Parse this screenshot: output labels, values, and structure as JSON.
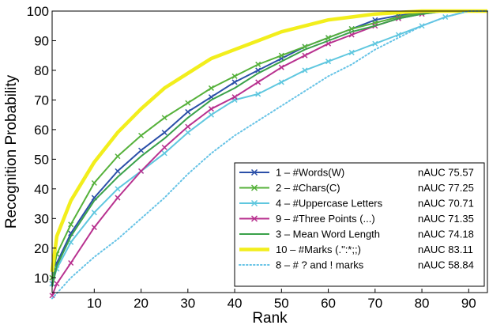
{
  "chart_data": {
    "type": "line",
    "xlabel": "Rank",
    "ylabel": "Recognition Probability",
    "xlim": [
      1,
      94
    ],
    "ylim": [
      5,
      100
    ],
    "x_ticks": [
      10,
      20,
      30,
      40,
      50,
      60,
      70,
      80,
      90
    ],
    "y_ticks": [
      10,
      20,
      30,
      40,
      50,
      60,
      70,
      80,
      90,
      100
    ],
    "grid": false,
    "legend_position": "bottom-right",
    "series": [
      {
        "name": "1 – #Words(W)",
        "nauc": "nAUC 75.57",
        "color": "#2b4fa8",
        "style": "solid",
        "marker": "x",
        "x": [
          1,
          2,
          5,
          10,
          15,
          20,
          25,
          30,
          35,
          40,
          45,
          50,
          55,
          60,
          65,
          70,
          75,
          80,
          85,
          90,
          94
        ],
        "y": [
          8,
          15,
          25,
          37,
          46,
          53,
          59,
          66,
          71,
          76,
          80,
          84,
          88,
          91,
          94,
          97,
          98.5,
          99.5,
          100,
          100,
          100
        ]
      },
      {
        "name": "2 – #Chars(C)",
        "nauc": "nAUC 77.25",
        "color": "#55b13a",
        "style": "solid",
        "marker": "x",
        "x": [
          1,
          2,
          5,
          10,
          15,
          20,
          25,
          30,
          35,
          40,
          45,
          50,
          55,
          60,
          65,
          70,
          75,
          80,
          85,
          90,
          94
        ],
        "y": [
          10,
          18,
          28,
          42,
          51,
          58,
          64,
          69,
          74,
          78,
          82,
          85,
          88,
          91,
          94,
          96,
          98,
          99.5,
          100,
          100,
          100
        ]
      },
      {
        "name": "4 – #Uppercase Letters",
        "nauc": "nAUC 70.71",
        "color": "#5fc7df",
        "style": "solid",
        "marker": "x",
        "x": [
          1,
          2,
          5,
          10,
          15,
          20,
          25,
          30,
          35,
          40,
          45,
          50,
          55,
          60,
          65,
          70,
          75,
          80,
          85,
          90,
          94
        ],
        "y": [
          8,
          13,
          22,
          32,
          40,
          46,
          52,
          59,
          65,
          70,
          72,
          76,
          80,
          83,
          86,
          89,
          92,
          95,
          98,
          100,
          100
        ]
      },
      {
        "name": "9 – #Three Points (...)",
        "nauc": "nAUC 71.35",
        "color": "#b8318f",
        "style": "solid",
        "marker": "x",
        "x": [
          1,
          2,
          5,
          10,
          15,
          20,
          25,
          30,
          35,
          40,
          45,
          50,
          55,
          60,
          65,
          70,
          75,
          80,
          85,
          90,
          94
        ],
        "y": [
          4,
          8,
          15,
          27,
          37,
          46,
          54,
          61,
          67,
          71,
          76,
          81,
          85,
          89,
          92,
          95,
          97.5,
          99,
          100,
          100,
          100
        ]
      },
      {
        "name": "3 – Mean Word Length",
        "nauc": "nAUC 74.18",
        "color": "#3aa14a",
        "style": "solid",
        "marker": "none",
        "x": [
          1,
          2,
          5,
          10,
          15,
          20,
          25,
          30,
          35,
          40,
          45,
          50,
          55,
          60,
          65,
          70,
          75,
          80,
          85,
          90,
          94
        ],
        "y": [
          7,
          14,
          24,
          36,
          44,
          51,
          57,
          64,
          70,
          74,
          79,
          83,
          87,
          90,
          93,
          95,
          97.5,
          99,
          100,
          100,
          100
        ]
      },
      {
        "name": "10 – #Marks (.\":*;;)",
        "nauc": "nAUC 83.11",
        "color": "#f2ee1c",
        "style": "thick",
        "marker": "none",
        "x": [
          1,
          2,
          5,
          10,
          15,
          20,
          25,
          30,
          35,
          40,
          45,
          50,
          55,
          60,
          65,
          70,
          75,
          80,
          85,
          90,
          94
        ],
        "y": [
          12,
          24,
          36,
          49,
          59,
          67,
          74,
          79,
          84,
          87,
          90,
          93,
          95,
          97,
          98,
          99,
          99.5,
          100,
          100,
          100,
          100
        ]
      },
      {
        "name": "8 – # ? and ! marks",
        "nauc": "nAUC 58.84",
        "color": "#66c3e6",
        "style": "dotted",
        "marker": "none",
        "x": [
          1,
          5,
          10,
          15,
          20,
          25,
          30,
          35,
          40,
          45,
          50,
          55,
          60,
          65,
          70,
          75,
          80,
          85,
          90,
          94
        ],
        "y": [
          3,
          10,
          17,
          23,
          30,
          37,
          45,
          52,
          58,
          63,
          68,
          73,
          78,
          82,
          87,
          91,
          95,
          98,
          100,
          100
        ]
      }
    ]
  }
}
